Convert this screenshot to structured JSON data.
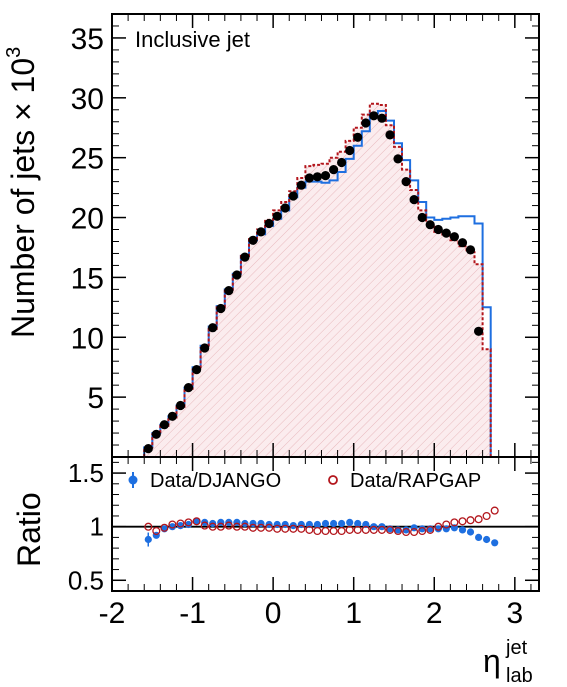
{
  "chart_data": [
    {
      "type": "line",
      "annotation": "Inclusive jet",
      "ylabel": "Number of jets × 10",
      "ylabel_exponent": "3",
      "ylim": [
        0,
        37
      ],
      "xlim": [
        -2,
        3.3
      ],
      "yticks": [
        "5",
        "10",
        "15",
        "20",
        "25",
        "30",
        "35"
      ],
      "ytick_values": [
        5,
        10,
        15,
        20,
        25,
        30,
        35
      ],
      "bin_edges": [
        -1.6,
        -1.5,
        -1.4,
        -1.3,
        -1.2,
        -1.1,
        -1.0,
        -0.9,
        -0.8,
        -0.7,
        -0.6,
        -0.5,
        -0.4,
        -0.3,
        -0.2,
        -0.1,
        0.0,
        0.1,
        0.2,
        0.3,
        0.4,
        0.5,
        0.6,
        0.7,
        0.8,
        0.9,
        1.0,
        1.1,
        1.2,
        1.3,
        1.4,
        1.5,
        1.6,
        1.7,
        1.8,
        1.9,
        2.0,
        2.1,
        2.2,
        2.3,
        2.4,
        2.5,
        2.6,
        2.7,
        2.8
      ],
      "series": [
        {
          "name": "DJANGO",
          "style": "step",
          "color": "#1e6fe0",
          "values": [
            0.8,
            2.0,
            2.7,
            3.4,
            4.3,
            5.8,
            7.5,
            9.3,
            10.9,
            12.6,
            14.0,
            15.3,
            16.8,
            18.1,
            18.6,
            19.3,
            19.9,
            20.6,
            21.7,
            22.5,
            23.0,
            23.0,
            22.9,
            23.1,
            23.8,
            24.9,
            26.0,
            27.2,
            28.7,
            28.9,
            28.1,
            26.2,
            24.8,
            23.1,
            21.3,
            20.0,
            19.8,
            19.9,
            20.0,
            20.1,
            20.1,
            19.5,
            12.5,
            0.0
          ]
        },
        {
          "name": "RAPGAP",
          "style": "dashed-step-filled",
          "color": "#b3161c",
          "values": [
            0.8,
            1.9,
            2.6,
            3.3,
            4.2,
            5.7,
            7.3,
            9.1,
            10.7,
            12.5,
            13.9,
            15.2,
            16.8,
            18.2,
            19.0,
            19.8,
            20.6,
            21.3,
            22.2,
            23.3,
            24.3,
            24.4,
            24.5,
            25.0,
            25.5,
            26.4,
            27.5,
            28.6,
            29.5,
            29.4,
            27.7,
            25.9,
            24.0,
            22.3,
            20.6,
            19.5,
            18.8,
            18.5,
            18.1,
            17.6,
            17.1,
            16.1,
            9.0,
            0.0
          ]
        },
        {
          "name": "Data",
          "style": "markers",
          "color": "#000000",
          "values": [
            0.7,
            1.9,
            2.7,
            3.4,
            4.3,
            5.8,
            7.3,
            9.1,
            10.8,
            12.4,
            13.9,
            15.2,
            16.7,
            18.1,
            18.8,
            19.5,
            20.1,
            20.8,
            21.8,
            22.7,
            23.3,
            23.4,
            23.5,
            24.0,
            24.6,
            25.6,
            26.7,
            27.9,
            28.5,
            28.3,
            26.9,
            24.9,
            23.0,
            21.5,
            20.0,
            19.4,
            19.0,
            18.7,
            18.4,
            17.9,
            17.3,
            10.5,
            null,
            null
          ]
        }
      ]
    },
    {
      "type": "scatter",
      "ylabel": "Ratio",
      "xlabel": "η",
      "xlabel_sup": "jet",
      "xlabel_sub": "lab",
      "ylim": [
        0.4,
        1.65
      ],
      "xlim": [
        -2,
        3.3
      ],
      "xticks": [
        "-2",
        "-1",
        "0",
        "1",
        "2",
        "3"
      ],
      "xtick_values": [
        -2,
        -1,
        0,
        1,
        2,
        3
      ],
      "yticks": [
        "0.5",
        "1",
        "1.5"
      ],
      "ytick_values": [
        0.5,
        1.0,
        1.5
      ],
      "reference_line": 1.0,
      "legend": [
        {
          "label": "Data/DJANGO",
          "marker": "filled-circle",
          "color": "#1e6fe0"
        },
        {
          "label": "Data/RAPGAP",
          "marker": "open-circle",
          "color": "#b3161c"
        }
      ],
      "x": [
        -1.55,
        -1.45,
        -1.35,
        -1.25,
        -1.15,
        -1.05,
        -0.95,
        -0.85,
        -0.75,
        -0.65,
        -0.55,
        -0.45,
        -0.35,
        -0.25,
        -0.15,
        -0.05,
        0.05,
        0.15,
        0.25,
        0.35,
        0.45,
        0.55,
        0.65,
        0.75,
        0.85,
        0.95,
        1.05,
        1.15,
        1.25,
        1.35,
        1.45,
        1.55,
        1.65,
        1.75,
        1.85,
        1.95,
        2.05,
        2.15,
        2.25,
        2.35,
        2.45,
        2.55,
        2.65,
        2.75
      ],
      "series": [
        {
          "name": "Data/DJANGO",
          "color": "#1e6fe0",
          "values": [
            0.88,
            0.92,
            0.98,
            1.0,
            1.01,
            1.02,
            1.05,
            1.04,
            1.03,
            1.04,
            1.04,
            1.04,
            1.03,
            1.03,
            1.03,
            1.02,
            1.02,
            1.02,
            1.01,
            1.02,
            1.02,
            1.02,
            1.03,
            1.03,
            1.03,
            1.04,
            1.03,
            1.02,
            1.0,
            1.0,
            0.98,
            0.97,
            0.97,
            0.99,
            0.98,
            0.98,
            0.98,
            0.98,
            0.99,
            0.97,
            0.95,
            0.9,
            0.88,
            0.85
          ]
        },
        {
          "name": "Data/RAPGAP",
          "color": "#b3161c",
          "values": [
            1.0,
            0.96,
            0.99,
            1.02,
            1.03,
            1.04,
            1.05,
            1.01,
            1.0,
            1.0,
            1.01,
            1.0,
            1.0,
            0.99,
            0.99,
            0.99,
            0.98,
            0.98,
            0.98,
            0.98,
            0.97,
            0.96,
            0.96,
            0.96,
            0.96,
            0.97,
            0.97,
            0.97,
            0.97,
            0.97,
            0.97,
            0.96,
            0.95,
            0.95,
            0.96,
            0.97,
            1.0,
            1.02,
            1.04,
            1.05,
            1.06,
            1.07,
            1.1,
            1.15
          ]
        }
      ]
    }
  ]
}
